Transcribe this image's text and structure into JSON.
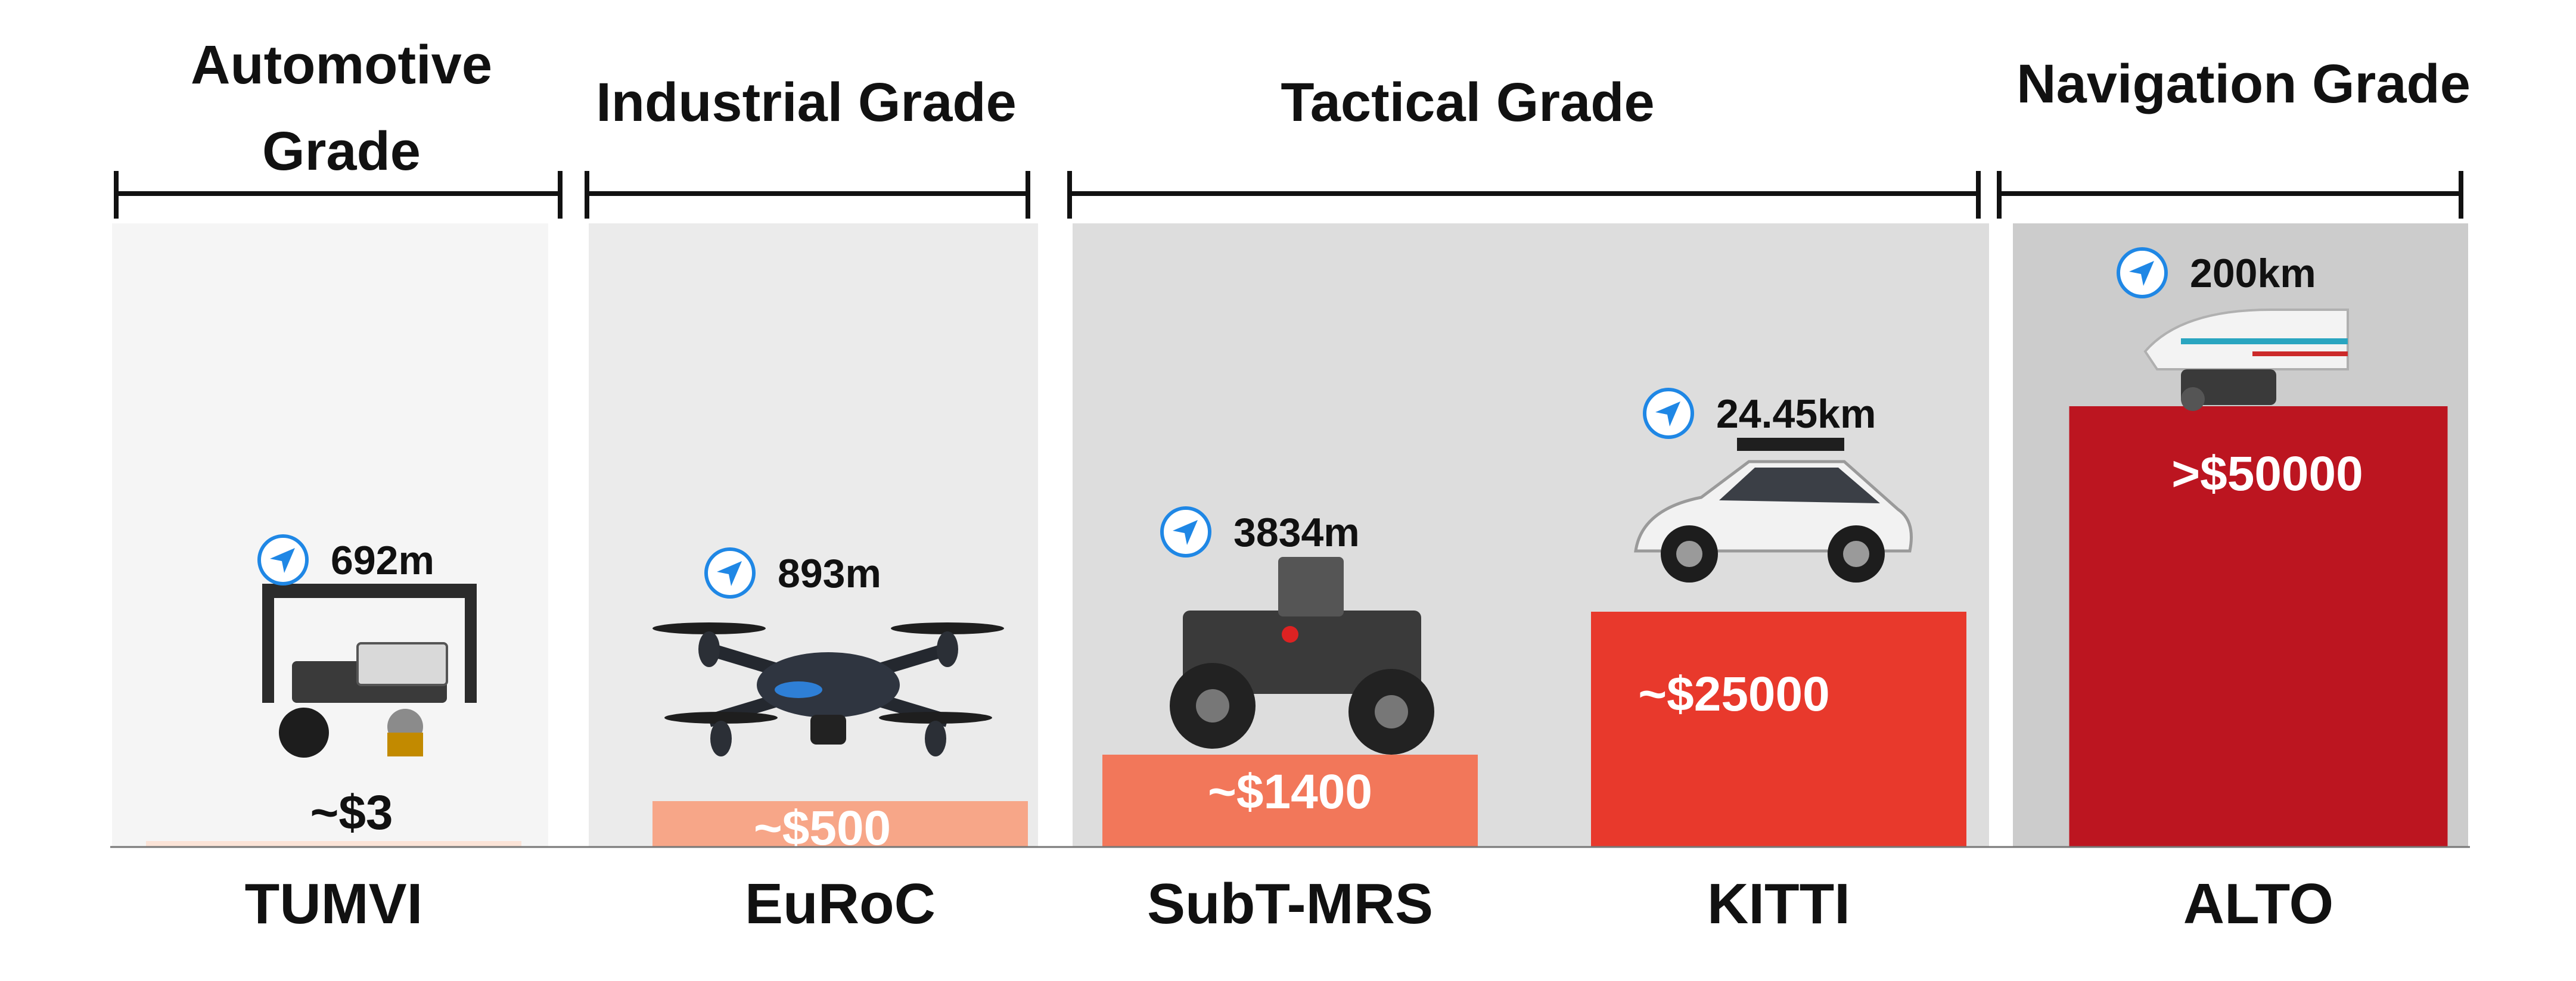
{
  "chart_data": {
    "type": "bar",
    "categories": [
      "TUMVI",
      "EuRoC",
      "SubT-MRS",
      "KITTI",
      "ALTO"
    ],
    "values": [
      3,
      500,
      1400,
      25000,
      50000
    ],
    "value_labels": [
      "~$3",
      "~$500",
      "~$1400",
      "~$25000",
      ">$50000"
    ],
    "distances": [
      "692m",
      "893m",
      "3834m",
      "24.45km",
      "200km"
    ],
    "grades": [
      {
        "name": "Automotive Grade",
        "lines": [
          "Automotive",
          "Grade"
        ],
        "categories": [
          "TUMVI"
        ]
      },
      {
        "name": "Industrial Grade",
        "lines": [
          "Industrial Grade"
        ],
        "categories": [
          "EuRoC"
        ]
      },
      {
        "name": "Tactical Grade",
        "lines": [
          "Tactical Grade"
        ],
        "categories": [
          "SubT-MRS",
          "KITTI"
        ]
      },
      {
        "name": "Navigation Grade",
        "lines": [
          "Navigation Grade"
        ],
        "categories": [
          "ALTO"
        ]
      }
    ],
    "platforms": [
      "sensor-rig",
      "quadcopter-drone",
      "wheeled-robot",
      "car",
      "aircraft"
    ],
    "bar_colors": [
      "#fbe3d7",
      "#f7a688",
      "#f2775a",
      "#e8392c",
      "#bc1520"
    ],
    "price_label_colors": [
      "#111111",
      "#ffffff",
      "#ffffff",
      "#ffffff",
      "#ffffff"
    ],
    "panel_colors": [
      "#f5f5f5",
      "#ebebeb",
      "#dddddd",
      "#cccccc"
    ],
    "icon_color": "#1f87e5",
    "scale": "non-linear (ordinal)",
    "title": "",
    "xlabel": "",
    "ylabel": "",
    "grid": false,
    "legend": "none"
  }
}
